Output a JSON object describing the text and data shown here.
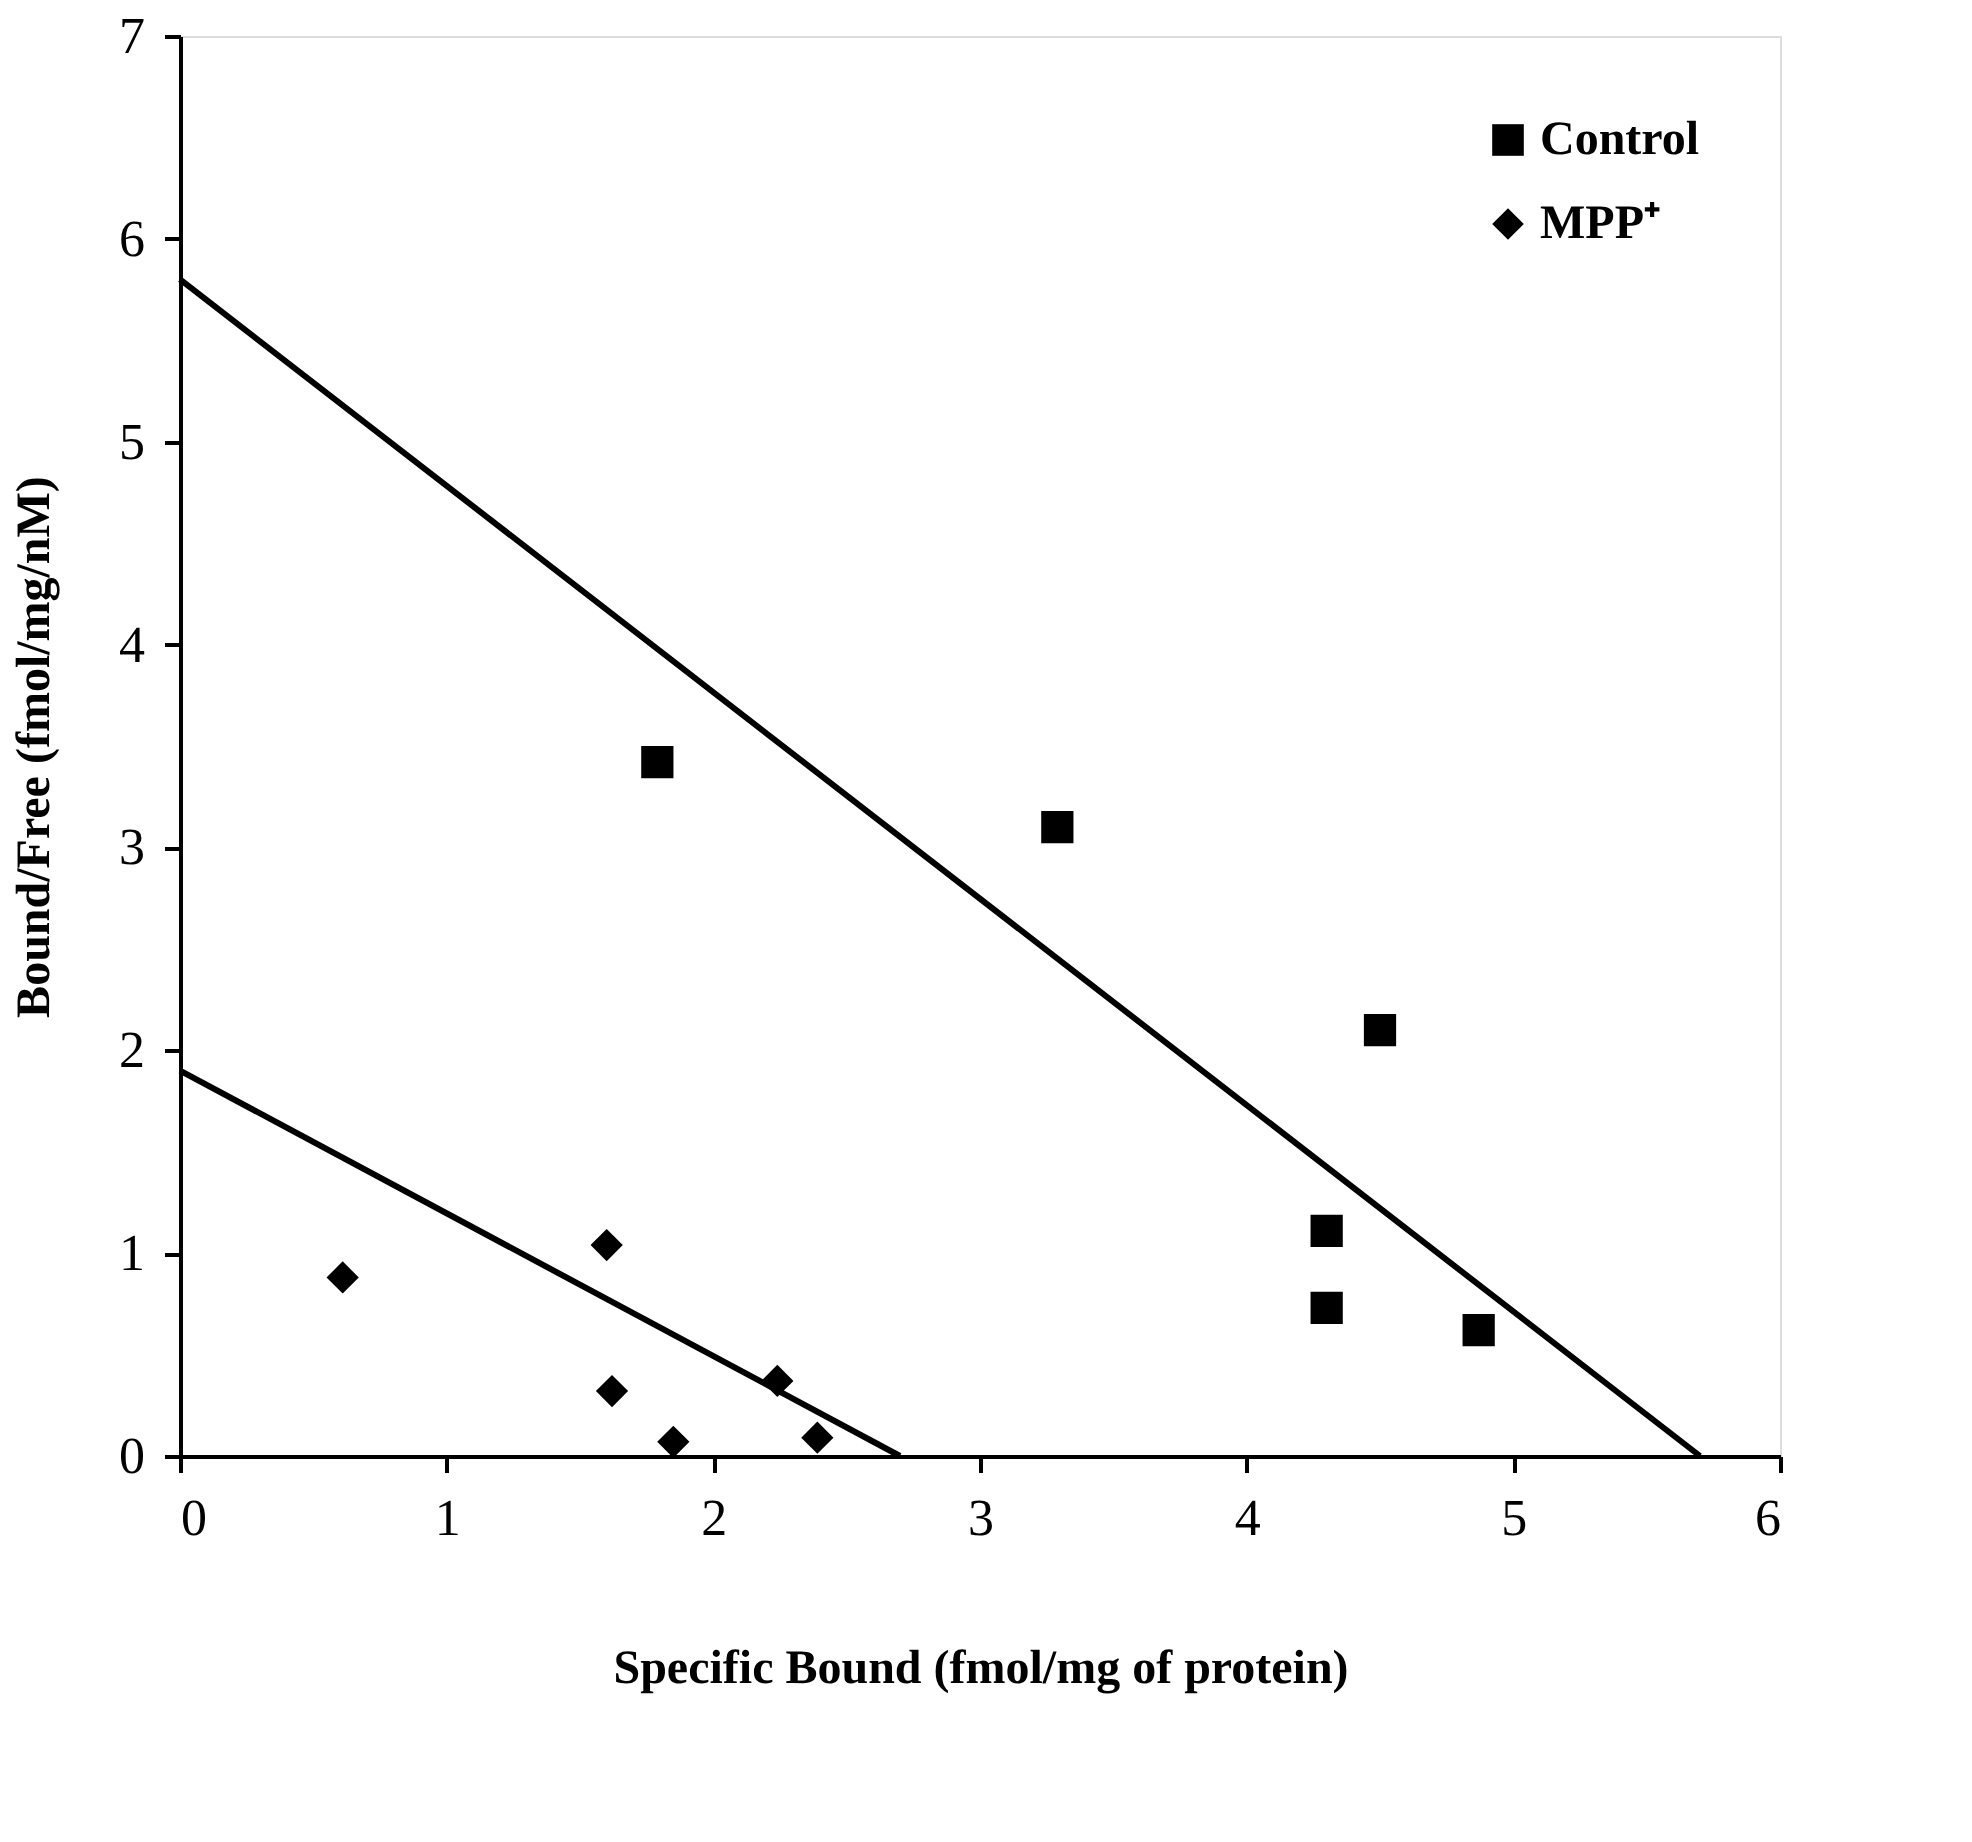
{
  "chart_data": {
    "type": "scatter",
    "xlabel": "Specific Bound (fmol/mg of protein)",
    "ylabel": "Bound/Free (fmol/mg/nM)",
    "xlim": [
      0,
      6
    ],
    "xticks": [
      0,
      1,
      2,
      3,
      4,
      5,
      6
    ],
    "ylim": [
      0,
      7
    ],
    "yticks": [
      0,
      1,
      2,
      3,
      4,
      5,
      6,
      7
    ],
    "grid": false,
    "legend": "top right",
    "series": [
      {
        "name": "Control",
        "color": "#000000",
        "marker": "square",
        "x": [
          1.79,
          3.29,
          4.5,
          4.3,
          4.3,
          4.87
        ],
        "values": [
          3.42,
          3.1,
          2.1,
          1.11,
          0.73,
          0.62
        ]
      },
      {
        "name": "MPP⁺",
        "color": "#000000",
        "marker": "diamond",
        "x": [
          0.61,
          1.6,
          1.62,
          1.85,
          2.24,
          2.39
        ],
        "values": [
          0.88,
          1.04,
          0.32,
          0.07,
          0.37,
          0.09
        ]
      },
      {
        "type": "line",
        "color": "#000000",
        "line_style": "solid",
        "x": [
          0,
          5.7
        ],
        "values": [
          5.8,
          0
        ]
      },
      {
        "type": "line",
        "color": "#000000",
        "line_style": "solid",
        "x": [
          0,
          2.7
        ],
        "values": [
          1.9,
          0
        ]
      }
    ]
  }
}
